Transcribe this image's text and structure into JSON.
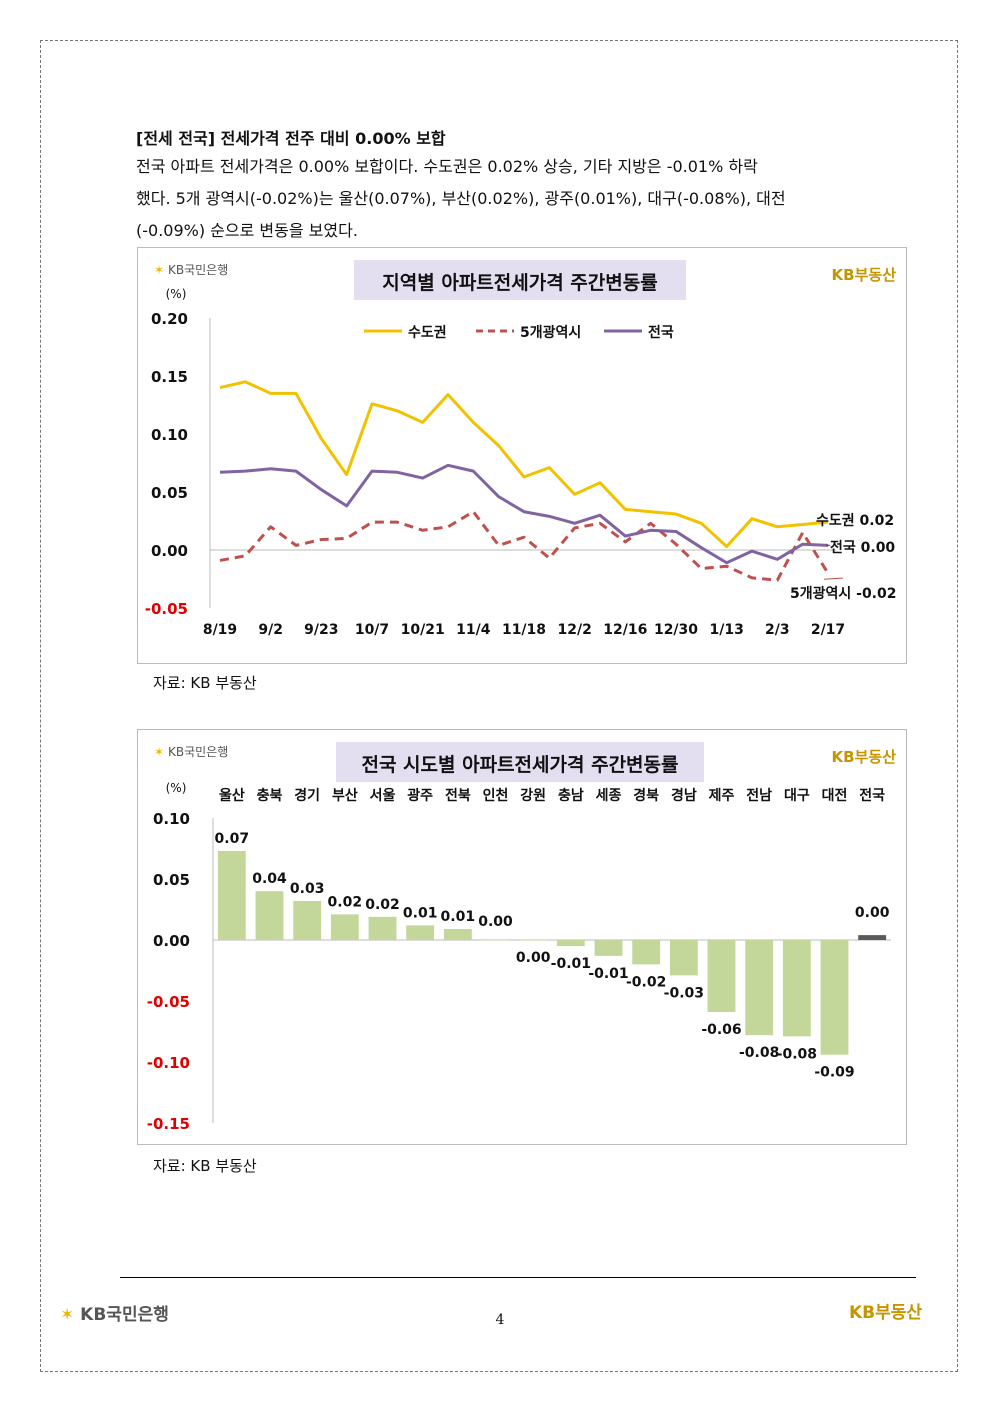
{
  "heading": "[전세 전국] 전세가격 전주 대비 0.00% 보합",
  "paragraph_lines": [
    "전국 아파트 전세가격은 0.00% 보합이다. 수도권은 0.02% 상승, 기타 지방은 -0.01% 하락",
    "했다. 5개 광역시(-0.02%)는 울산(0.07%), 부산(0.02%), 광주(0.01%), 대구(-0.08%), 대전",
    "(-0.09%) 순으로 변동을 보였다."
  ],
  "branding": {
    "kb_bank": "KB국민은행",
    "kb_realestate": "KB부동산"
  },
  "chart1_source": "자료: KB 부동산",
  "chart2_source": "자료: KB 부동산",
  "page_number": "4",
  "colors": {
    "metro": "#f2c200",
    "five_cities": "#c0504d",
    "national": "#8064a2",
    "bar_green": "#c4d79b",
    "bar_national": "#595959",
    "negative_tick": "#e00000"
  },
  "chart_data": [
    {
      "type": "line",
      "title": "지역별 아파트전세가격 주간변동률",
      "ylabel": "(%)",
      "ylim": [
        -0.05,
        0.2
      ],
      "yticks": [
        "0.20",
        "0.15",
        "0.10",
        "0.05",
        "0.00",
        "-0.05"
      ],
      "xticks": [
        "8/19",
        "9/2",
        "9/23",
        "10/7",
        "10/21",
        "11/4",
        "11/18",
        "12/2",
        "12/16",
        "12/30",
        "1/13",
        "2/3",
        "2/17"
      ],
      "legend": [
        "수도권",
        "5개광역시",
        "전국"
      ],
      "legend_position": "top-center",
      "series": [
        {
          "name": "수도권",
          "values": [
            0.14,
            0.145,
            0.135,
            0.135,
            0.096,
            0.065,
            0.126,
            0.12,
            0.11,
            0.134,
            0.11,
            0.09,
            0.063,
            0.071,
            0.048,
            0.058,
            0.035,
            0.033,
            0.031,
            0.023,
            0.003,
            0.027,
            0.02,
            0.022,
            0.024
          ]
        },
        {
          "name": "5개광역시",
          "values": [
            -0.009,
            -0.005,
            0.02,
            0.004,
            0.009,
            0.01,
            0.024,
            0.024,
            0.017,
            0.02,
            0.033,
            0.004,
            0.011,
            -0.007,
            0.019,
            0.023,
            0.007,
            0.023,
            0.005,
            -0.016,
            -0.014,
            -0.024,
            -0.026,
            0.015,
            -0.02
          ]
        },
        {
          "name": "전국",
          "values": [
            0.067,
            0.068,
            0.07,
            0.068,
            0.052,
            0.038,
            0.068,
            0.067,
            0.062,
            0.073,
            0.068,
            0.046,
            0.033,
            0.029,
            0.023,
            0.03,
            0.012,
            0.017,
            0.016,
            0.002,
            -0.011,
            -0.001,
            -0.008,
            0.005,
            0.004
          ]
        }
      ],
      "end_labels": [
        "수도권 0.02",
        "전국 0.00",
        "5개광역시 -0.02"
      ]
    },
    {
      "type": "bar",
      "title": "전국 시도별 아파트전세가격 주간변동률",
      "ylabel": "(%)",
      "ylim": [
        -0.15,
        0.1
      ],
      "yticks": [
        "0.10",
        "0.05",
        "0.00",
        "-0.05",
        "-0.10",
        "-0.15"
      ],
      "categories": [
        "울산",
        "충북",
        "경기",
        "부산",
        "서울",
        "광주",
        "전북",
        "인천",
        "강원",
        "충남",
        "세종",
        "경북",
        "경남",
        "제주",
        "전남",
        "대구",
        "대전",
        "전국"
      ],
      "values": [
        0.073,
        0.04,
        0.032,
        0.021,
        0.019,
        0.012,
        0.009,
        0.0,
        0.0,
        -0.005,
        -0.013,
        -0.02,
        -0.029,
        -0.059,
        -0.078,
        -0.079,
        -0.094,
        0.004
      ],
      "data_labels": [
        "0.07",
        "0.04",
        "0.03",
        "0.02",
        "0.02",
        "0.01",
        "0.01",
        "0.00",
        "0.00",
        "-0.01",
        "-0.01",
        "-0.02",
        "-0.03",
        "-0.06",
        "-0.08",
        "-0.08",
        "-0.09",
        "0.00"
      ]
    }
  ]
}
